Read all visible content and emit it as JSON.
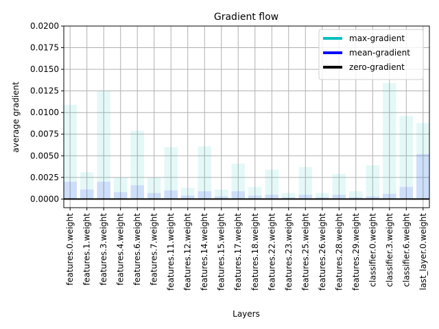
{
  "chart_data": {
    "type": "bar",
    "title": "Gradient flow",
    "xlabel": "Layers",
    "ylabel": "average gradient",
    "ylim": [
      -0.001,
      0.02
    ],
    "yticks": [
      0.0,
      0.0025,
      0.005,
      0.0075,
      0.01,
      0.0125,
      0.015,
      0.0175,
      0.02
    ],
    "ytick_labels": [
      "0.0000",
      "0.0025",
      "0.0050",
      "0.0075",
      "0.0100",
      "0.0125",
      "0.0150",
      "0.0175",
      "0.0200"
    ],
    "grid": true,
    "legend_position": "top-right",
    "categories": [
      "features.0.weight",
      "features.1.weight",
      "features.3.weight",
      "features.4.weight",
      "features.6.weight",
      "features.7.weight",
      "features.11.weight",
      "features.12.weight",
      "features.14.weight",
      "features.15.weight",
      "features.17.weight",
      "features.18.weight",
      "features.22.weight",
      "features.23.weight",
      "features.25.weight",
      "features.26.weight",
      "features.28.weight",
      "features.29.weight",
      "classifier.0.weight",
      "classifier.3.weight",
      "classifier.6.weight",
      "last_layer.0.weight"
    ],
    "series": [
      {
        "name": "max-gradient",
        "color": "#00bfbf",
        "values": [
          0.0109,
          0.0031,
          0.0125,
          0.0025,
          0.0079,
          0.0025,
          0.006,
          0.0013,
          0.0061,
          0.0011,
          0.0041,
          0.0014,
          0.0034,
          0.0007,
          0.0037,
          0.0007,
          0.0029,
          0.0009,
          0.0039,
          0.0134,
          0.0096,
          0.0088
        ]
      },
      {
        "name": "mean-gradient",
        "color": "#0000ff",
        "values": [
          0.002,
          0.0011,
          0.002,
          0.0008,
          0.0016,
          0.0007,
          0.001,
          0.0004,
          0.0009,
          0.0003,
          0.0009,
          0.0004,
          0.0005,
          0.0002,
          0.0005,
          0.0002,
          0.0005,
          0.0002,
          0.0003,
          0.0006,
          0.0014,
          0.0052
        ]
      }
    ],
    "zero_line": {
      "name": "zero-gradient",
      "color": "#000000"
    }
  }
}
